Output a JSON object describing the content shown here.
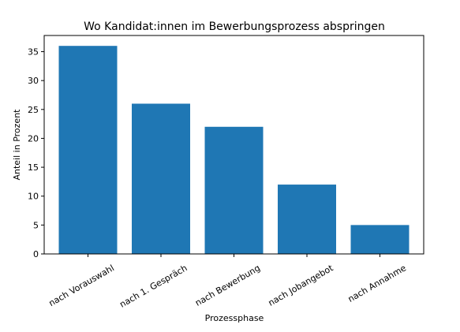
{
  "chart_data": {
    "type": "bar",
    "title": "Wo Kandidat:innen im Bewerbungsprozess abspringen",
    "xlabel": "Prozessphase",
    "ylabel": "Anteil in Prozent",
    "categories": [
      "nach Vorauswahl",
      "nach 1. Gespräch",
      "nach Bewerbung",
      "nach Jobangebot",
      "nach Annahme"
    ],
    "values": [
      36,
      26,
      22,
      12,
      5
    ],
    "ylim": [
      0,
      37.8
    ],
    "yticks": [
      0,
      5,
      10,
      15,
      20,
      25,
      30,
      35
    ],
    "bar_color": "#1f77b4",
    "grid": false,
    "legend": "none"
  }
}
